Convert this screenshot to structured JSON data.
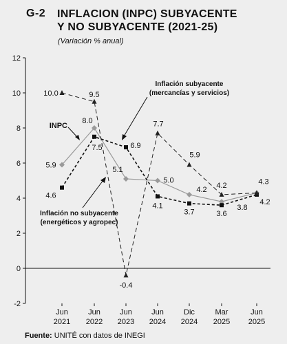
{
  "header": {
    "code": "G-2",
    "title_line1": "INFLACION (INPC) SUBYACENTE",
    "title_line2": "Y NO SUBYACENTE (2021-25)",
    "subtitle": "(Variación % anual)"
  },
  "source": {
    "label": "Fuente:",
    "text": " UNITÉ con datos de INEGI"
  },
  "chart_data": {
    "type": "line",
    "ylim": [
      -2,
      12
    ],
    "yticks": [
      -2,
      0,
      2,
      4,
      6,
      8,
      10,
      12
    ],
    "grid": false,
    "categories": [
      [
        "Jun",
        "2021"
      ],
      [
        "Jun",
        "2022"
      ],
      [
        "Jun",
        "2023"
      ],
      [
        "Jun",
        "2024"
      ],
      [
        "Dic",
        "2024"
      ],
      [
        "Mar",
        "2025"
      ],
      [
        "Jun",
        "2025"
      ]
    ],
    "series": [
      {
        "name": "INPC",
        "marker": "diamond",
        "style": "solid",
        "color": "#9a9a9a",
        "values": [
          5.9,
          8.0,
          5.1,
          5.0,
          4.2,
          3.8,
          4.3
        ],
        "labels": [
          "5.9",
          "8.0",
          "5.1",
          "5.0",
          "4.2",
          "3.8",
          "4.3"
        ]
      },
      {
        "name": "Inflación subyacente (mercancías y servicios)",
        "marker": "square",
        "style": "dashed-heavy",
        "color": "#111111",
        "values": [
          4.6,
          7.5,
          6.9,
          4.1,
          3.7,
          3.6,
          4.2
        ],
        "labels": [
          "4.6",
          "7.5",
          "6.9",
          "4.1",
          "3.7",
          "3.6",
          "4.2"
        ]
      },
      {
        "name": "Inflación no subyacente (energéticos y agropec)",
        "marker": "triangle",
        "style": "dashed-light",
        "color": "#222222",
        "values": [
          10.0,
          9.5,
          -0.4,
          7.7,
          5.9,
          4.2,
          4.3
        ],
        "labels": [
          "10.0",
          "9.5",
          "-0.4",
          "7.7",
          "5.9",
          "4.2",
          ""
        ]
      }
    ],
    "annotations": {
      "inpc": "INPC",
      "sub_line1": "Inflación subyacente",
      "sub_line2": "(mercancías y servicios)",
      "nosub_line1": "Inflación no subyacente",
      "nosub_line2": "(energéticos y agropec)"
    }
  }
}
